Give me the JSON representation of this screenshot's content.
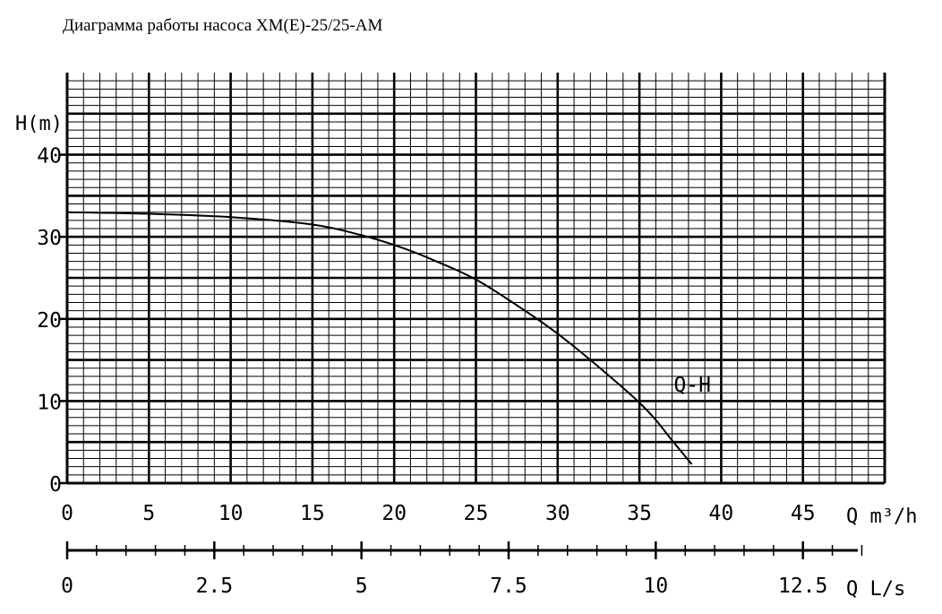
{
  "title": "Диаграмма работы насоса XM(E)-25/25-AM",
  "chart_data": {
    "type": "line",
    "ylabel": "H(m)",
    "xlabel": "Q m³/h",
    "x2label": "Q L/s",
    "xlim": [
      0,
      50
    ],
    "ylim": [
      0,
      50
    ],
    "x2lim": [
      0,
      13.889
    ],
    "x_ticks": [
      "0",
      "5",
      "10",
      "15",
      "20",
      "25",
      "30",
      "35",
      "40",
      "45"
    ],
    "y_ticks": [
      "0",
      "10",
      "20",
      "30",
      "40"
    ],
    "x2_ticks": [
      "0",
      "2.5",
      "5",
      "7.5",
      "10",
      "12.5"
    ],
    "series": [
      {
        "name": "Q-H",
        "x": [
          0,
          5,
          10,
          15,
          18,
          20,
          22,
          25,
          28,
          30,
          32,
          34,
          35,
          36,
          37,
          38.2
        ],
        "y": [
          33,
          32.8,
          32.4,
          31.5,
          30.2,
          29,
          27.5,
          24.8,
          21,
          18.2,
          15,
          11.6,
          9.8,
          7.7,
          5.2,
          2.3
        ]
      }
    ],
    "grid": true
  }
}
